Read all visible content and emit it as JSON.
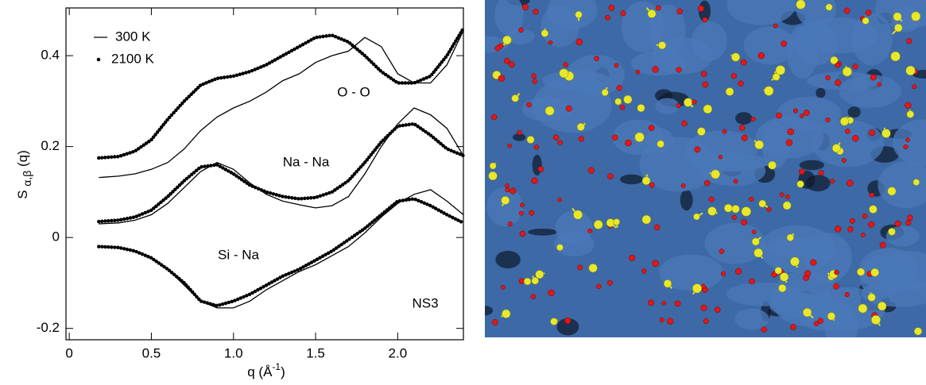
{
  "chart_data": {
    "type": "line",
    "xlabel": [
      "q (Å",
      "-1",
      ")"
    ],
    "ylabel": [
      "S ",
      "α,β",
      " (q)"
    ],
    "pairs": [
      "O - O",
      "Na - Na",
      "Si - Na"
    ],
    "annotation": "NS3",
    "x": [
      0.18,
      0.3,
      0.4,
      0.5,
      0.6,
      0.7,
      0.8,
      0.9,
      1.0,
      1.1,
      1.2,
      1.3,
      1.4,
      1.5,
      1.6,
      1.7,
      1.8,
      1.9,
      2.0,
      2.1,
      2.2,
      2.3,
      2.4
    ],
    "series": [
      {
        "name": "300 K",
        "style": "line",
        "color": "#000000",
        "values": [
          [
            0.132,
            0.135,
            0.14,
            0.15,
            0.165,
            0.195,
            0.235,
            0.265,
            0.285,
            0.3,
            0.32,
            0.345,
            0.36,
            0.385,
            0.4,
            0.41,
            0.44,
            0.42,
            0.36,
            0.34,
            0.34,
            0.38,
            0.455
          ],
          [
            0.03,
            0.032,
            0.038,
            0.05,
            0.075,
            0.11,
            0.145,
            0.165,
            0.15,
            0.12,
            0.095,
            0.08,
            0.072,
            0.065,
            0.07,
            0.09,
            0.14,
            0.2,
            0.25,
            0.285,
            0.27,
            0.24,
            0.18
          ],
          [
            -0.02,
            -0.022,
            -0.03,
            -0.045,
            -0.07,
            -0.105,
            -0.14,
            -0.155,
            -0.155,
            -0.14,
            -0.115,
            -0.095,
            -0.075,
            -0.06,
            -0.04,
            -0.02,
            0.01,
            0.045,
            0.075,
            0.095,
            0.105,
            0.08,
            0.05
          ]
        ]
      },
      {
        "name": "2100 K",
        "style": "dots",
        "color": "#000000",
        "values": [
          [
            0.175,
            0.178,
            0.19,
            0.215,
            0.26,
            0.3,
            0.335,
            0.35,
            0.355,
            0.365,
            0.38,
            0.4,
            0.42,
            0.44,
            0.445,
            0.43,
            0.4,
            0.365,
            0.34,
            0.34,
            0.355,
            0.4,
            0.46
          ],
          [
            0.035,
            0.038,
            0.045,
            0.06,
            0.09,
            0.125,
            0.155,
            0.16,
            0.14,
            0.115,
            0.1,
            0.09,
            0.085,
            0.088,
            0.1,
            0.125,
            0.165,
            0.21,
            0.245,
            0.25,
            0.225,
            0.195,
            0.18
          ],
          [
            -0.02,
            -0.022,
            -0.03,
            -0.045,
            -0.07,
            -0.1,
            -0.14,
            -0.15,
            -0.14,
            -0.125,
            -0.105,
            -0.085,
            -0.07,
            -0.05,
            -0.03,
            -0.005,
            0.02,
            0.05,
            0.08,
            0.085,
            0.07,
            0.05,
            0.032
          ]
        ]
      }
    ],
    "xlim": [
      -0.02,
      2.4
    ],
    "ylim": [
      -0.225,
      0.505
    ],
    "xticks": [
      0,
      0.5,
      {
        "value": 1,
        "label": "1.0"
      },
      1.5,
      {
        "value": 2,
        "label": "2.0"
      }
    ],
    "yticks": [
      -0.2,
      0,
      0.2,
      0.4
    ]
  }
}
